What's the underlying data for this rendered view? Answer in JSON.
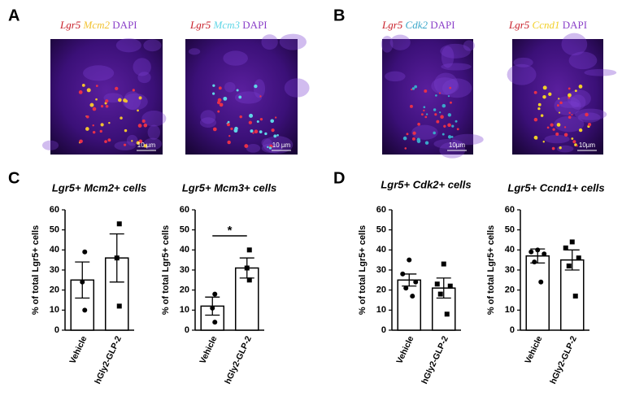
{
  "panels": {
    "A": {
      "letter": "A",
      "images": [
        {
          "labels": [
            "Lgr5",
            "Mcm2",
            "DAPI"
          ],
          "scale_bar": "10 µm"
        },
        {
          "labels": [
            "Lgr5",
            "Mcm3",
            "DAPI"
          ],
          "scale_bar": "10 µm"
        }
      ]
    },
    "B": {
      "letter": "B",
      "images": [
        {
          "labels": [
            "Lgr5",
            "Cdk2",
            "DAPI"
          ],
          "scale_bar": "10µm"
        },
        {
          "labels": [
            "Lgr5",
            "Ccnd1",
            "DAPI"
          ],
          "scale_bar": "10µm"
        }
      ]
    },
    "C": {
      "letter": "C"
    },
    "D": {
      "letter": "D"
    }
  },
  "chart_data": [
    {
      "type": "bar",
      "title": "Lgr5+ Mcm2+ cells",
      "ylabel": "% of total Lgr5+ cells",
      "categories": [
        "Vehicle",
        "hGly2-GLP-2"
      ],
      "values": [
        25,
        36
      ],
      "errors": [
        9,
        12
      ],
      "points": [
        [
          39,
          24,
          10
        ],
        [
          53,
          36,
          12
        ]
      ],
      "color": "#ffffff",
      "ylim": [
        0,
        60
      ],
      "yticks": [
        0,
        10,
        20,
        30,
        40,
        50,
        60
      ]
    },
    {
      "type": "bar",
      "title": "Lgr5+ Mcm3+ cells",
      "ylabel": "% of total Lgr5+ cells",
      "categories": [
        "Vehicle",
        "hGly2-GLP-2"
      ],
      "values": [
        12,
        31
      ],
      "errors": [
        4.5,
        5
      ],
      "points": [
        [
          18,
          11,
          4
        ],
        [
          40,
          31,
          25
        ]
      ],
      "color": "#ffffff",
      "significance": "*",
      "ylim": [
        0,
        60
      ],
      "yticks": [
        0,
        10,
        20,
        30,
        40,
        50,
        60
      ]
    },
    {
      "type": "bar",
      "title": "Lgr5+ Cdk2+ cells",
      "ylabel": "% of total Lgr5+ cells",
      "categories": [
        "Vehicle",
        "hGly2-GLP-2"
      ],
      "values": [
        25,
        21
      ],
      "errors": [
        3,
        5
      ],
      "points": [
        [
          35,
          28,
          24,
          21,
          17
        ],
        [
          33,
          23,
          22,
          18,
          8
        ]
      ],
      "color": "#ffffff",
      "ylim": [
        0,
        60
      ],
      "yticks": [
        0,
        10,
        20,
        30,
        40,
        50,
        60
      ]
    },
    {
      "type": "bar",
      "title": "Lgr5+ Ccnd1+ cells",
      "ylabel": "% of total Lgr5+ cells",
      "categories": [
        "Vehicle",
        "hGly2-GLP-2"
      ],
      "values": [
        37,
        35
      ],
      "errors": [
        3.5,
        5
      ],
      "points": [
        [
          40,
          39,
          38,
          34,
          24
        ],
        [
          44,
          41,
          36,
          32,
          17
        ]
      ],
      "color": "#ffffff",
      "ylim": [
        0,
        60
      ],
      "yticks": [
        0,
        10,
        20,
        30,
        40,
        50,
        60
      ]
    }
  ]
}
